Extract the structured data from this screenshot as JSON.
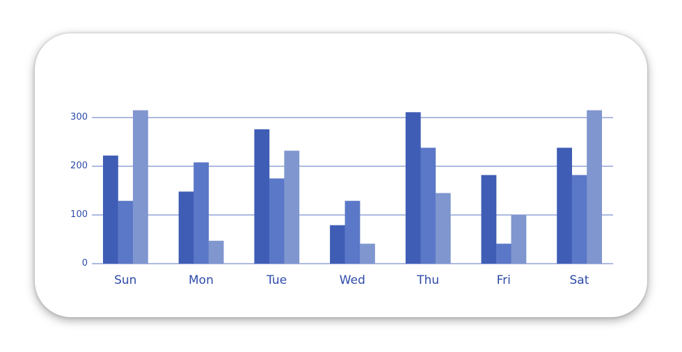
{
  "chart_data": {
    "type": "bar",
    "categories": [
      "Sun",
      "Mon",
      "Tue",
      "Wed",
      "Thu",
      "Fri",
      "Sat"
    ],
    "series": [
      {
        "values": [
          222,
          148,
          276,
          79,
          311,
          182,
          238
        ],
        "color": "#3f5db5"
      },
      {
        "values": [
          129,
          208,
          175,
          129,
          238,
          41,
          182
        ],
        "color": "#5b77c7"
      },
      {
        "values": [
          315,
          47,
          232,
          41,
          145,
          100,
          315
        ],
        "color": "#7f96cf"
      }
    ],
    "yticks": [
      0,
      100,
      200,
      300
    ],
    "ylim": [
      0,
      300
    ],
    "grid": true,
    "colors": {
      "axis": "#7a8fcf",
      "text": "#2d4aa8"
    }
  }
}
